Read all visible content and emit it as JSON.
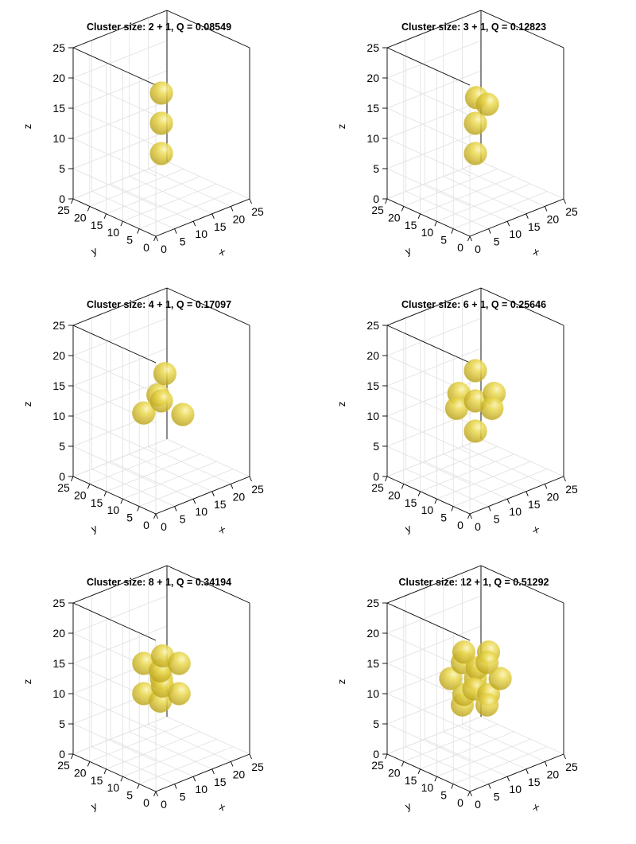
{
  "figure": {
    "background": "#ffffff",
    "sphere_color": "#e2d44a",
    "grid_color": "#e0e0e0"
  },
  "chart_data": [
    {
      "type": "scatter",
      "title": "Cluster size: 2 + 1, Q = 0.08549",
      "xlabel": "x",
      "ylabel": "y",
      "zlabel": "z",
      "xlim": [
        0,
        25
      ],
      "ylim": [
        0,
        25
      ],
      "zlim": [
        0,
        25
      ],
      "xticks": [
        "0",
        "5",
        "10",
        "15",
        "20",
        "25"
      ],
      "yticks": [
        "0",
        "5",
        "10",
        "15",
        "20",
        "25"
      ],
      "zticks": [
        "0",
        "5",
        "10",
        "15",
        "20",
        "25"
      ],
      "grid": true,
      "points": [
        [
          12.5,
          12.5,
          7.5
        ],
        [
          12.5,
          12.5,
          12.5
        ],
        [
          12.5,
          12.5,
          17.5
        ]
      ]
    },
    {
      "type": "scatter",
      "title": "Cluster size: 3 + 1, Q = 0.12823",
      "xlabel": "x",
      "ylabel": "y",
      "zlabel": "z",
      "xlim": [
        0,
        25
      ],
      "ylim": [
        0,
        25
      ],
      "zlim": [
        0,
        25
      ],
      "xticks": [
        "0",
        "5",
        "10",
        "15",
        "20",
        "25"
      ],
      "yticks": [
        "0",
        "5",
        "10",
        "15",
        "20",
        "25"
      ],
      "zticks": [
        "0",
        "5",
        "10",
        "15",
        "20",
        "25"
      ],
      "grid": true,
      "points": [
        [
          12.5,
          12.5,
          12.5
        ],
        [
          12.5,
          12.5,
          7.5
        ],
        [
          13.5,
          10,
          16
        ],
        [
          15,
          15,
          15.5
        ]
      ]
    },
    {
      "type": "scatter",
      "title": "Cluster size: 4 + 1, Q = 0.17097",
      "xlabel": "x",
      "ylabel": "y",
      "zlabel": "z",
      "xlim": [
        0,
        25
      ],
      "ylim": [
        0,
        25
      ],
      "zlim": [
        0,
        25
      ],
      "xticks": [
        "0",
        "5",
        "10",
        "15",
        "20",
        "25"
      ],
      "yticks": [
        "0",
        "5",
        "10",
        "15",
        "20",
        "25"
      ],
      "zticks": [
        "0",
        "5",
        "10",
        "15",
        "20",
        "25"
      ],
      "grid": true,
      "points": [
        [
          12.5,
          12.5,
          12.5
        ],
        [
          13,
          12,
          17
        ],
        [
          10,
          15,
          10.5
        ],
        [
          16,
          10,
          10
        ],
        [
          12,
          13,
          13.5
        ]
      ]
    },
    {
      "type": "scatter",
      "title": "Cluster size: 6 + 1, Q = 0.25646",
      "xlabel": "x",
      "ylabel": "y",
      "zlabel": "z",
      "xlim": [
        0,
        25
      ],
      "ylim": [
        0,
        25
      ],
      "zlim": [
        0,
        25
      ],
      "xticks": [
        "0",
        "5",
        "10",
        "15",
        "20",
        "25"
      ],
      "yticks": [
        "0",
        "5",
        "10",
        "15",
        "20",
        "25"
      ],
      "zticks": [
        "0",
        "5",
        "10",
        "15",
        "20",
        "25"
      ],
      "grid": true,
      "points": [
        [
          12.5,
          12.5,
          12.5
        ],
        [
          12.5,
          12.5,
          17.5
        ],
        [
          12.5,
          12.5,
          7.5
        ],
        [
          17.5,
          12.5,
          12.5
        ],
        [
          12.5,
          17.5,
          12.5
        ],
        [
          7.5,
          12.5,
          12.5
        ],
        [
          12.5,
          7.5,
          12.5
        ]
      ]
    },
    {
      "type": "scatter",
      "title": "Cluster size: 8 + 1, Q = 0.34194",
      "xlabel": "x",
      "ylabel": "y",
      "zlabel": "z",
      "xlim": [
        0,
        25
      ],
      "ylim": [
        0,
        25
      ],
      "zlim": [
        0,
        25
      ],
      "xticks": [
        "0",
        "5",
        "10",
        "15",
        "20",
        "25"
      ],
      "yticks": [
        "0",
        "5",
        "10",
        "15",
        "20",
        "25"
      ],
      "zticks": [
        "0",
        "5",
        "10",
        "15",
        "20",
        "25"
      ],
      "grid": true,
      "points": [
        [
          12.5,
          12.5,
          12.5
        ],
        [
          10,
          10,
          10
        ],
        [
          15,
          10,
          10
        ],
        [
          10,
          15,
          10
        ],
        [
          15,
          15,
          10
        ],
        [
          10,
          10,
          15
        ],
        [
          15,
          10,
          15
        ],
        [
          10,
          15,
          15
        ],
        [
          15,
          15,
          15
        ]
      ]
    },
    {
      "type": "scatter",
      "title": "Cluster size: 12 + 1, Q = 0.51292",
      "xlabel": "x",
      "ylabel": "y",
      "zlabel": "z",
      "xlim": [
        0,
        25
      ],
      "ylim": [
        0,
        25
      ],
      "zlim": [
        0,
        25
      ],
      "xticks": [
        "0",
        "5",
        "10",
        "15",
        "20",
        "25"
      ],
      "yticks": [
        "0",
        "5",
        "10",
        "15",
        "20",
        "25"
      ],
      "zticks": [
        "0",
        "5",
        "10",
        "15",
        "20",
        "25"
      ],
      "grid": true,
      "points": [
        [
          12.5,
          12.5,
          12.5
        ],
        [
          16,
          16,
          12.5
        ],
        [
          9,
          16,
          12.5
        ],
        [
          16,
          9,
          12.5
        ],
        [
          9,
          9,
          12.5
        ],
        [
          16,
          12.5,
          16
        ],
        [
          9,
          12.5,
          16
        ],
        [
          16,
          12.5,
          9
        ],
        [
          9,
          12.5,
          9
        ],
        [
          12.5,
          16,
          16
        ],
        [
          12.5,
          9,
          16
        ],
        [
          12.5,
          16,
          9
        ],
        [
          12.5,
          9,
          9
        ]
      ]
    }
  ]
}
